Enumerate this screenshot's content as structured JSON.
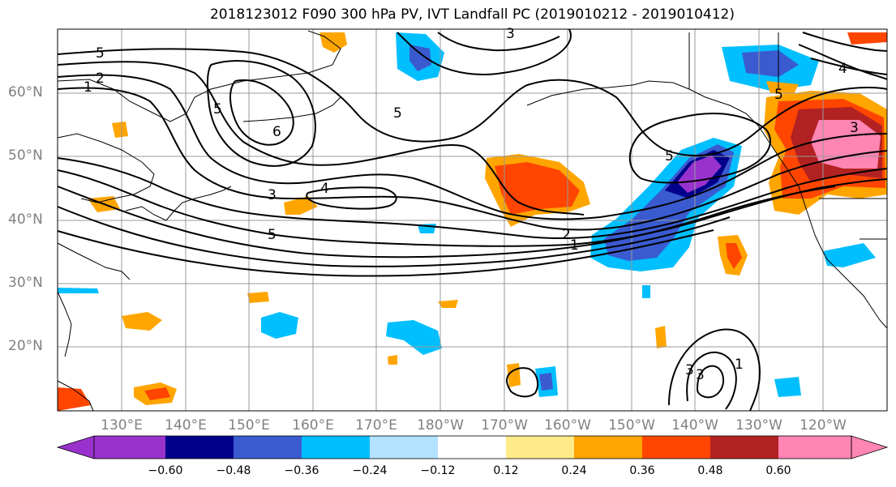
{
  "title": "2018123012 F090 300 hPa PV, IVT Landfall PC (2019010212 - 2019010412)",
  "lat_labels": [
    "60°N",
    "50°N",
    "40°N",
    "30°N",
    "20°N"
  ],
  "lon_labels": [
    "130°E",
    "140°E",
    "150°E",
    "160°E",
    "170°E",
    "180°W",
    "170°W",
    "160°W",
    "150°W",
    "140°W",
    "130°W",
    "120°W"
  ],
  "colorbar": {
    "colors": [
      "#9932CC",
      "#00008B",
      "#3A5BD0",
      "#00BFFF",
      "#B2E2FF",
      "#FFFFFF",
      "#FFEA8A",
      "#FFA500",
      "#FF4500",
      "#B22222",
      "#FF85B3"
    ],
    "tick_labels": [
      "−0.60",
      "−0.48",
      "−0.36",
      "−0.24",
      "−0.12",
      "0.12",
      "0.24",
      "0.36",
      "0.48",
      "0.60"
    ]
  },
  "contour_labels": [
    "5",
    "2",
    "1",
    "5",
    "6",
    "5",
    "3",
    "4",
    "5",
    "3",
    "4",
    "3",
    "5",
    "5",
    "2",
    "1",
    "3",
    "3",
    "1"
  ]
}
